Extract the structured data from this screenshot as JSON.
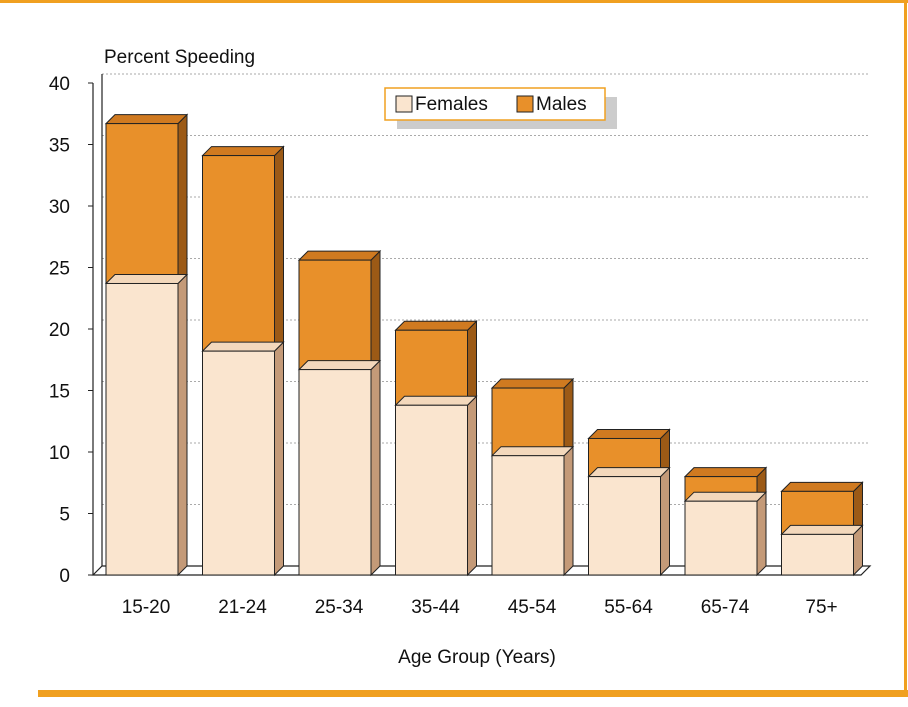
{
  "colors": {
    "frame": "#f0a020",
    "females_front": "#fae5cf",
    "females_side": "#c49a78",
    "females_top": "#f3d8bc",
    "males_front": "#e8902a",
    "males_side": "#9c5a16",
    "males_top": "#d07a20",
    "gridline": "#aaaaaa",
    "legend_shadow": "#cccccc"
  },
  "chart_data": {
    "type": "bar",
    "stacked": true,
    "title": "",
    "ylabel": "Percent Speeding",
    "xlabel": "Age Group (Years)",
    "ylim": [
      0,
      40
    ],
    "yticks": [
      0,
      5,
      10,
      15,
      20,
      25,
      30,
      35,
      40
    ],
    "grid": true,
    "legend_position": "top-center",
    "categories": [
      "15-20",
      "21-24",
      "25-34",
      "35-44",
      "45-54",
      "55-64",
      "65-74",
      "75+"
    ],
    "series": [
      {
        "name": "Females",
        "values": [
          23.7,
          18.2,
          16.7,
          13.8,
          9.7,
          8.0,
          6.0,
          3.3
        ]
      },
      {
        "name": "Males",
        "values": [
          13.0,
          15.9,
          8.9,
          6.1,
          5.5,
          3.1,
          2.0,
          3.5
        ]
      }
    ]
  }
}
